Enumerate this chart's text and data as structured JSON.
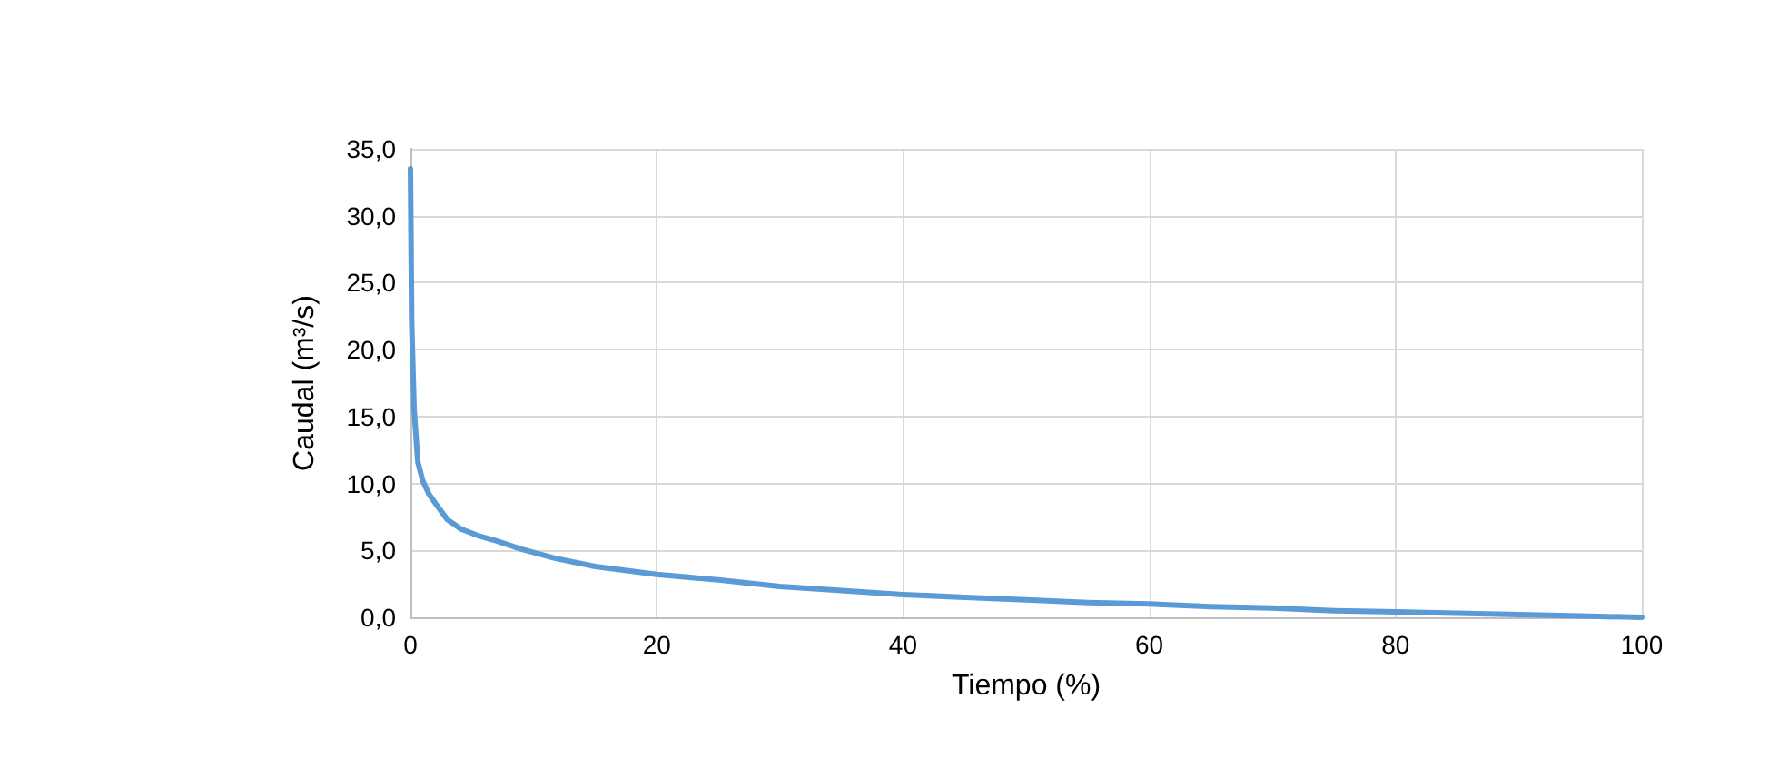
{
  "chart_data": {
    "type": "line",
    "xlabel": "Tiempo (%)",
    "ylabel": "Caudal (m³/s)",
    "x": [
      0,
      0.1,
      0.3,
      0.6,
      1,
      1.5,
      2.2,
      3,
      4.1,
      5.5,
      7,
      9,
      11.8,
      15,
      20,
      25,
      30,
      35,
      40,
      45,
      50,
      55,
      60,
      65,
      70,
      75,
      80,
      85,
      90,
      95,
      100
    ],
    "series": [
      {
        "color": "#5b9bd5",
        "values": [
          33.5,
          22,
          15.5,
          11.6,
          10.2,
          9.2,
          8.3,
          7.3,
          6.6,
          6.1,
          5.7,
          5.1,
          4.4,
          3.8,
          3.2,
          2.8,
          2.3,
          2,
          1.7,
          1.5,
          1.3,
          1.1,
          1,
          0.8,
          0.7,
          0.5,
          0.4,
          0.3,
          0.2,
          0.1,
          0
        ]
      }
    ],
    "xlim": [
      0,
      100
    ],
    "xticks": [
      0,
      20,
      40,
      60,
      80,
      100
    ],
    "ylim": [
      0,
      35
    ],
    "yticks": [
      {
        "value": 0,
        "label": "0,0"
      },
      {
        "value": 5,
        "label": "5,0"
      },
      {
        "value": 10,
        "label": "10,0"
      },
      {
        "value": 15,
        "label": "15,0"
      },
      {
        "value": 20,
        "label": "20,0"
      },
      {
        "value": 25,
        "label": "25,0"
      },
      {
        "value": 30,
        "label": "30,0"
      },
      {
        "value": 35,
        "label": "35,0"
      }
    ],
    "grid": true,
    "marker": "none",
    "line_style": "solid"
  }
}
